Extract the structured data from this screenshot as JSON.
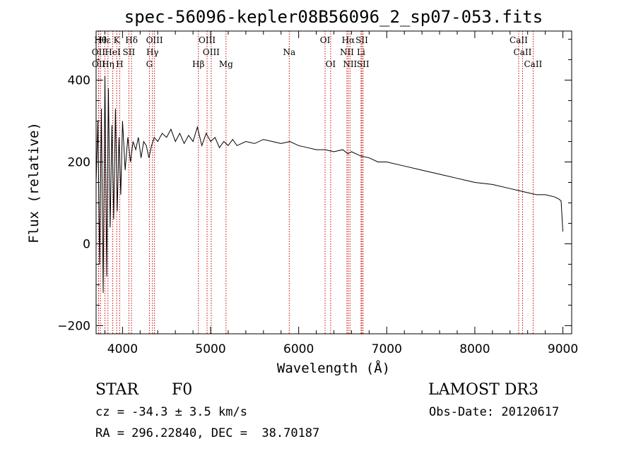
{
  "chart_data": {
    "type": "line",
    "title": "spec-56096-kepler08B56096_2_sp07-053.fits",
    "xlabel": "Wavelength (Å)",
    "ylabel": "Flux (relative)",
    "xlim": [
      3700,
      9100
    ],
    "ylim": [
      -220,
      520
    ],
    "xticks": [
      4000,
      5000,
      6000,
      7000,
      8000,
      9000
    ],
    "yticks": [
      -200,
      0,
      200,
      400
    ],
    "series": [
      {
        "name": "flux",
        "x": [
          3700,
          3720,
          3740,
          3760,
          3780,
          3800,
          3820,
          3840,
          3860,
          3880,
          3900,
          3920,
          3940,
          3960,
          3980,
          4000,
          4030,
          4060,
          4090,
          4120,
          4150,
          4180,
          4210,
          4240,
          4270,
          4300,
          4330,
          4360,
          4400,
          4450,
          4500,
          4550,
          4600,
          4650,
          4700,
          4750,
          4800,
          4850,
          4900,
          4950,
          5000,
          5050,
          5100,
          5150,
          5200,
          5250,
          5300,
          5400,
          5500,
          5600,
          5700,
          5800,
          5900,
          6000,
          6100,
          6200,
          6300,
          6400,
          6500,
          6560,
          6600,
          6700,
          6800,
          6900,
          7000,
          7200,
          7400,
          7600,
          7800,
          8000,
          8200,
          8400,
          8500,
          8600,
          8700,
          8800,
          8900,
          8950,
          8980,
          9000
        ],
        "y": [
          150,
          300,
          -50,
          330,
          -120,
          410,
          -80,
          380,
          40,
          290,
          60,
          330,
          80,
          260,
          120,
          300,
          180,
          260,
          200,
          250,
          230,
          260,
          210,
          250,
          240,
          210,
          240,
          260,
          250,
          270,
          260,
          280,
          250,
          270,
          245,
          265,
          250,
          285,
          240,
          270,
          250,
          260,
          235,
          250,
          240,
          255,
          240,
          250,
          245,
          255,
          250,
          245,
          250,
          240,
          235,
          230,
          230,
          225,
          230,
          220,
          225,
          215,
          210,
          200,
          200,
          190,
          180,
          170,
          160,
          150,
          145,
          135,
          130,
          125,
          120,
          120,
          115,
          110,
          105,
          30
        ]
      }
    ],
    "emission_lines": [
      {
        "label": "Hθ",
        "x": 3750,
        "row": 1
      },
      {
        "label": "Hε",
        "x": 3800,
        "row": 1
      },
      {
        "label": "K",
        "x": 3934,
        "row": 1
      },
      {
        "label": "Hδ",
        "x": 4102,
        "row": 1
      },
      {
        "label": "OIII",
        "x": 4363,
        "row": 1
      },
      {
        "label": "OIII",
        "x": 4960,
        "row": 1
      },
      {
        "label": "OI",
        "x": 6300,
        "row": 1
      },
      {
        "label": "Hα",
        "x": 6563,
        "row": 1
      },
      {
        "label": "SII",
        "x": 6717,
        "row": 1
      },
      {
        "label": "CaII",
        "x": 8498,
        "row": 1
      },
      {
        "label": "OII",
        "x": 3727,
        "row": 2
      },
      {
        "label": "HeI",
        "x": 3889,
        "row": 2
      },
      {
        "label": "SII",
        "x": 4072,
        "row": 2
      },
      {
        "label": "Hγ",
        "x": 4340,
        "row": 2
      },
      {
        "label": "OIII",
        "x": 5007,
        "row": 2
      },
      {
        "label": "Na",
        "x": 5893,
        "row": 2
      },
      {
        "label": "NII",
        "x": 6548,
        "row": 2
      },
      {
        "label": "Li",
        "x": 6708,
        "row": 2
      },
      {
        "label": "CaII",
        "x": 8542,
        "row": 2
      },
      {
        "label": "OII",
        "x": 3729,
        "row": 3
      },
      {
        "label": "Hη",
        "x": 3835,
        "row": 3
      },
      {
        "label": "H",
        "x": 3968,
        "row": 3
      },
      {
        "label": "G",
        "x": 4305,
        "row": 3
      },
      {
        "label": "Hβ",
        "x": 4861,
        "row": 3
      },
      {
        "label": "Mg",
        "x": 5175,
        "row": 3
      },
      {
        "label": "OI",
        "x": 6363,
        "row": 3
      },
      {
        "label": "NII",
        "x": 6583,
        "row": 3
      },
      {
        "label": "SII",
        "x": 6731,
        "row": 3
      },
      {
        "label": "CaII",
        "x": 8662,
        "row": 3
      }
    ]
  },
  "info": {
    "object_class": "STAR",
    "subclass": "F0",
    "survey": "LAMOST DR3",
    "cz": "cz = -34.3 ± 3.5 km/s",
    "obs_date": "Obs-Date: 20120617",
    "coords": "RA = 296.22840, DEC =  38.70187"
  },
  "colors": {
    "axis": "#000000",
    "line": "#000000",
    "marker": "#cc0000"
  }
}
